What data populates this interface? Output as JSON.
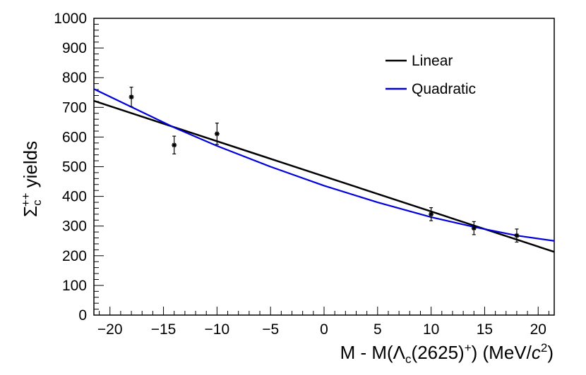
{
  "chart_data": {
    "type": "scatter",
    "x_range": [
      -21.5,
      21.5
    ],
    "ylim": [
      0,
      1000
    ],
    "x_ticks": [
      -20,
      -15,
      -10,
      -5,
      0,
      5,
      10,
      15,
      20
    ],
    "y_ticks": [
      0,
      100,
      200,
      300,
      400,
      500,
      600,
      700,
      800,
      900,
      1000
    ],
    "xlabel_parts": {
      "prefix": "M - M(",
      "symbol": "Λ",
      "sub": "c",
      "mid": "(2625)",
      "sup": "+",
      "close": ") (MeV/",
      "c": "c",
      "c_exp": "2",
      "end": ")"
    },
    "ylabel_parts": {
      "symbol": "Σ",
      "sub": "c",
      "sup": "++",
      "rest": " yields"
    },
    "legend": [
      {
        "label": "Linear",
        "color": "#000000"
      },
      {
        "label": "Quadratic",
        "color": "#0000dd"
      }
    ],
    "points": [
      {
        "x": -18,
        "y": 735,
        "err": 33
      },
      {
        "x": -14,
        "y": 573,
        "err": 30
      },
      {
        "x": -10,
        "y": 611,
        "err": 36
      },
      {
        "x": 10,
        "y": 340,
        "err": 22
      },
      {
        "x": 14,
        "y": 293,
        "err": 22
      },
      {
        "x": 18,
        "y": 268,
        "err": 22
      }
    ],
    "series": [
      {
        "name": "Linear",
        "color": "#000000",
        "x": [
          -21.5,
          21.5
        ],
        "values": [
          722,
          213
        ]
      },
      {
        "name": "Quadratic",
        "color": "#0000dd",
        "x": [
          -21.5,
          -14,
          -10,
          -5,
          0,
          5,
          10,
          14,
          18,
          21.5
        ],
        "values": [
          762,
          632,
          570,
          500,
          436,
          380,
          330,
          297,
          268,
          250
        ]
      }
    ]
  }
}
